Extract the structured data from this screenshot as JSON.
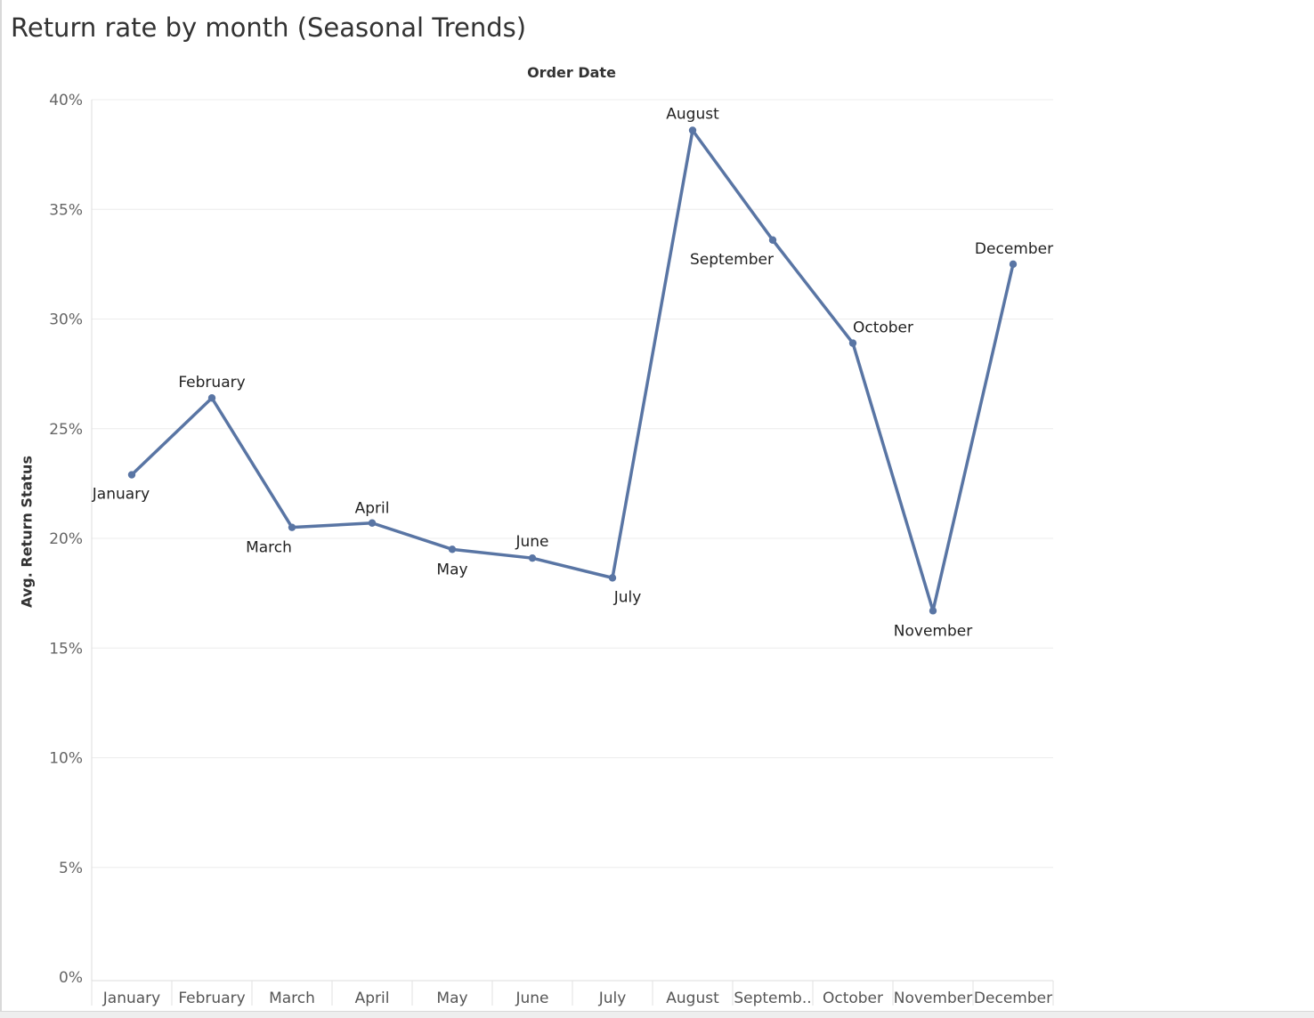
{
  "title": "Return rate by month (Seasonal Trends)",
  "chart_data": {
    "type": "line",
    "title": "Return rate by month (Seasonal Trends)",
    "x_header": "Order Date",
    "ylabel": "Avg. Return Status",
    "ylim": [
      0,
      40
    ],
    "y_ticks": [
      "0%",
      "5%",
      "10%",
      "15%",
      "20%",
      "25%",
      "30%",
      "35%",
      "40%"
    ],
    "categories": [
      "January",
      "February",
      "March",
      "April",
      "May",
      "June",
      "July",
      "August",
      "September",
      "October",
      "November",
      "December"
    ],
    "category_tick_labels": [
      "January",
      "February",
      "March",
      "April",
      "May",
      "June",
      "July",
      "August",
      "Septemb..",
      "October",
      "November",
      "December"
    ],
    "series": [
      {
        "values": [
          22.9,
          26.4,
          20.5,
          20.7,
          19.5,
          19.1,
          18.2,
          38.6,
          33.6,
          28.9,
          16.7,
          32.5
        ],
        "color": "#5975a4",
        "point_labels": [
          "January",
          "February",
          "March",
          "April",
          "May",
          "June",
          "July",
          "August",
          "September",
          "October",
          "November",
          "December"
        ]
      }
    ],
    "grid": true
  }
}
